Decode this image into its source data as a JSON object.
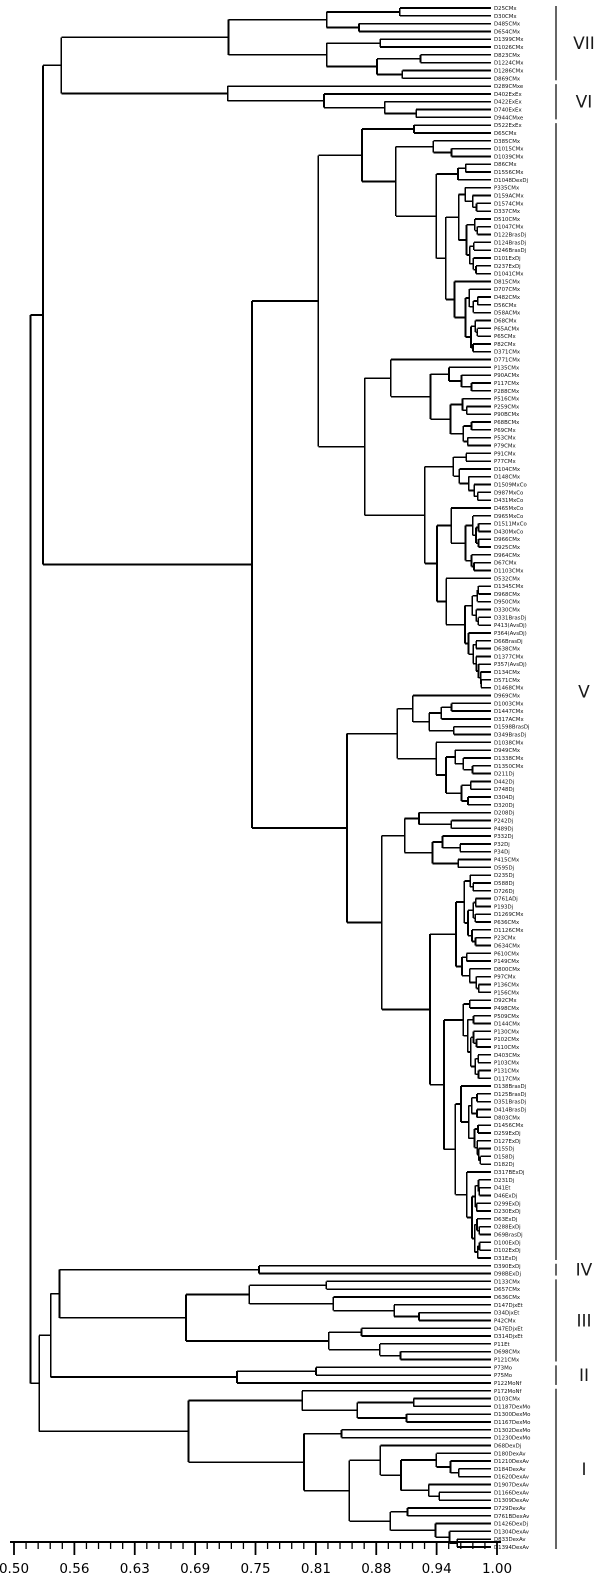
{
  "chart_data": {
    "type": "dendrogram",
    "title": "",
    "xlabel": "",
    "orientation": "horizontal, leaf labels on right, similarity axis on bottom",
    "axis": {
      "range": [
        0.5,
        1.0
      ],
      "tick_labels": [
        "0.50",
        "0.56",
        "0.63",
        "0.69",
        "0.75",
        "0.81",
        "0.88",
        "0.94",
        "1.00"
      ],
      "tick_values": [
        0.5,
        0.5625,
        0.625,
        0.6875,
        0.75,
        0.8125,
        0.875,
        0.9375,
        1.0
      ],
      "minor_divisions_per_interval": 5,
      "grid": false
    },
    "clusters": [
      {
        "label": "VII",
        "leaves": [
          "D25CMx",
          "D30CMx",
          "D485CMx",
          "D654CMx",
          "D1399CMx",
          "D1026CMx",
          "D823CMx",
          "D1224CMx",
          "D1286CMx",
          "D869CMx"
        ]
      },
      {
        "label": "VI",
        "leaves": [
          "D289CMxe",
          "D402ExEx",
          "D422ExEx",
          "D740ExEx",
          "D944CMxe"
        ]
      },
      {
        "label": "V",
        "leaves": [
          "D522ExEx",
          "D65CMx",
          "D385CMx",
          "D1015CMx",
          "D1039CMx",
          "D86CMx",
          "D1556CMx",
          "D1048DexDj",
          "P335CMx",
          "D159ACMx",
          "D1574CMx",
          "D337CMx",
          "D510CMx",
          "D1047CMx",
          "D122BrasDj",
          "D124BrasDj",
          "D246BrasDj",
          "D101ExDj",
          "D237ExDj",
          "D1041CMx",
          "D815CMx",
          "D707CMx",
          "D482CMx",
          "D56CMx",
          "D58ACMx",
          "D68CMx",
          "P65ACMx",
          "P65CMx",
          "P82CMx",
          "D371CMx",
          "D771CMx",
          "P135CMx",
          "P90ACMx",
          "P117CMx",
          "P288CMx",
          "P516CMx",
          "P259CMx",
          "P90BCMx",
          "P68BCMx",
          "P69CMx",
          "P53CMx",
          "P79CMx",
          "P91CMx",
          "P77CMx",
          "D104CMx",
          "D148CMx",
          "D1509MxCo",
          "D987MxCo",
          "D431MxCo",
          "D465MxCo",
          "D965MxCo",
          "D1511MxCo",
          "D430MxCo",
          "D966CMx",
          "D925CMx",
          "D964CMx",
          "D67CMx",
          "D1103CMx",
          "D532CMx",
          "D1345CMx",
          "D968CMx",
          "D950CMx",
          "D330CMx",
          "D331BrasDj",
          "P413(AvsDj)",
          "P364(AvsDj)",
          "D66BrasDj",
          "D638CMx",
          "D1377CMx",
          "P357(AvsDj)",
          "D134CMx",
          "D571CMx",
          "D1468CMx",
          "D969CMx",
          "D1003CMx",
          "D1447CMx",
          "D317ACMx",
          "D1598BrasDj",
          "D349BrasDj",
          "D1038CMx",
          "D949CMx",
          "D1338CMx",
          "D1350CMx",
          "D211Dj",
          "D442Dj",
          "D748Dj",
          "D304Dj",
          "D320Dj",
          "D208Dj",
          "P242Dj",
          "P489Dj",
          "P332Dj",
          "P32Dj",
          "P34Dj",
          "P415CMx",
          "D595Dj",
          "D235Dj",
          "D588Dj",
          "D726Dj",
          "D761ADj",
          "P193Dj",
          "D1269CMx",
          "P636CMx",
          "D1126CMx",
          "P23CMx",
          "D634CMx",
          "P610CMx",
          "P149CMx",
          "D800CMx",
          "P97CMx",
          "P136CMx",
          "P156CMx",
          "D92CMx",
          "P498CMx",
          "P509CMx",
          "D144CMx",
          "P130CMx",
          "P102CMx",
          "P110CMx",
          "D403CMx",
          "P103CMx",
          "P131CMx",
          "D117CMx",
          "D138BrasDj",
          "D125BrasDj",
          "D351BrasDj",
          "D414BrasDj",
          "D803CMx",
          "D1456CMx",
          "D259ExDj",
          "D127ExDj",
          "D155Dj",
          "D158Dj",
          "D182Dj",
          "D317BExDj",
          "D231Dj",
          "D41Et",
          "D46ExDj",
          "D299ExDj",
          "D230ExDj",
          "D63ExDj",
          "D288ExDj",
          "D69BrasDj",
          "D100ExDj",
          "D102ExDj",
          "D31ExDj"
        ]
      },
      {
        "label": "IV",
        "leaves": [
          "D390ExDj",
          "D98BExDj"
        ]
      },
      {
        "label": "III",
        "leaves": [
          "D133CMx",
          "D657CMx",
          "D636CMx",
          "D147DjxEt",
          "D34DjxEt",
          "P42CMx",
          "D47EDjxEt",
          "D314DjxEt",
          "P11Et",
          "D698CMx",
          "P121CMx"
        ]
      },
      {
        "label": "II",
        "leaves": [
          "P73Mo",
          "P75Mo",
          "P122MoNf"
        ]
      },
      {
        "label": "I",
        "leaves": [
          "P172MoNf",
          "D103CMx",
          "D1187DexMo",
          "D1300DexMo",
          "D1167DexMo",
          "D1302DexMo",
          "D1230DexMo",
          "D68DexDj",
          "D180DexAv",
          "D1210DexAv",
          "D184DexAv",
          "D1620DexAv",
          "D1907DexAv",
          "D1166DexAv",
          "D1309DexAv",
          "D729DexAv",
          "D761BDexAv",
          "D1426DexDj",
          "D1304DexAv",
          "D833DexAv",
          "D1394DexAv"
        ]
      }
    ],
    "group_join_similarities": {
      "VII+VI": 0.549,
      "(VII+VI)+V": 0.53,
      "IV+III": 0.547,
      "(IV+III)+II": 0.538,
      "+I": 0.526,
      "root": 0.517
    },
    "colors": {
      "line": "#000000",
      "label": "#111111",
      "bracket": "#333333"
    }
  }
}
